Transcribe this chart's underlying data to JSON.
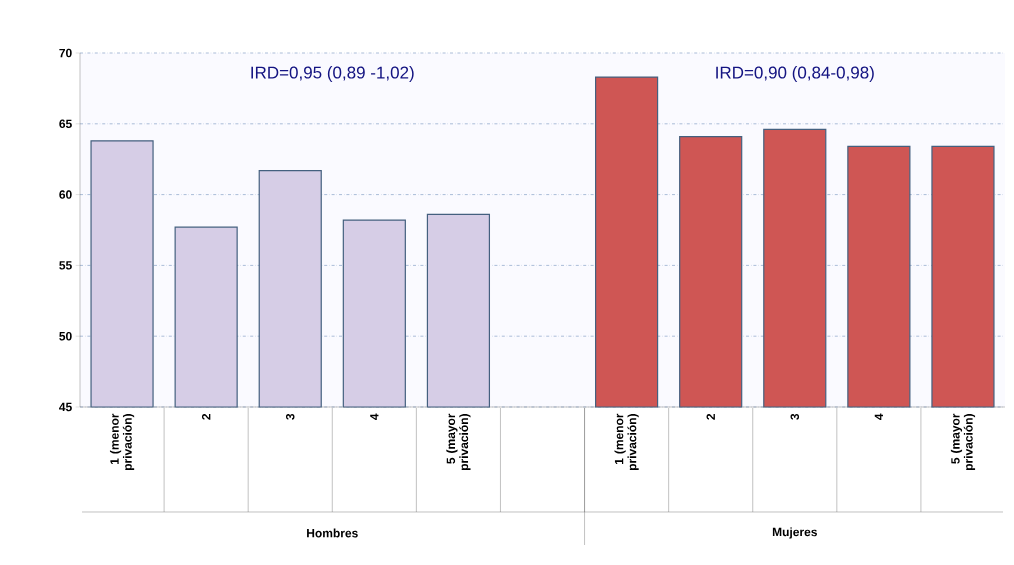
{
  "chart_data": {
    "type": "bar",
    "categories": [
      "1 (menor privación)",
      "2",
      "3",
      "4",
      "5 (mayor privación)",
      null,
      "1 (menor privación)",
      "2",
      "3",
      "4",
      "5 (mayor privación)"
    ],
    "series": [
      {
        "color": "#d6cde6",
        "values": [
          63.8,
          57.7,
          61.7,
          58.2,
          58.6,
          null,
          null,
          null,
          null,
          null,
          null
        ]
      },
      {
        "color": "#cf5654",
        "values": [
          null,
          null,
          null,
          null,
          null,
          null,
          68.3,
          64.1,
          64.6,
          63.4,
          63.4
        ]
      }
    ],
    "ylim": [
      45,
      70
    ],
    "yticks": [
      45,
      50,
      55,
      60,
      65,
      70
    ],
    "grid": "y",
    "annotations": [
      "IRD=0,95 (0,89 -1,02)",
      "IRD=0,90 (0,84-0,98)",
      "Hombres",
      "Mujeres"
    ]
  }
}
